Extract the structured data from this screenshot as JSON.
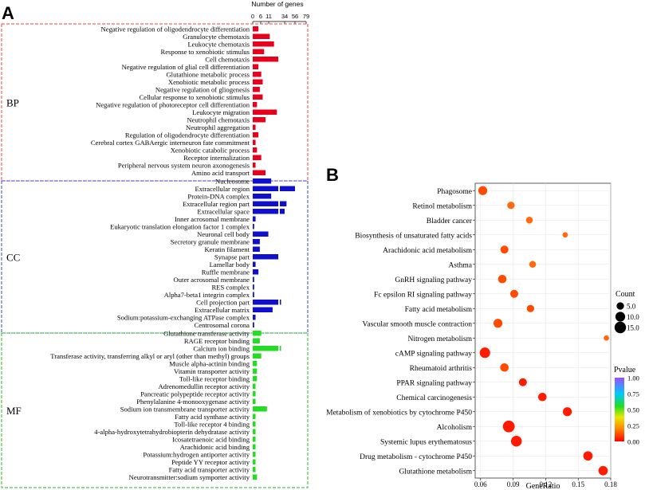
{
  "panel_a": {
    "letter": "A",
    "axis_title": "Number of genes",
    "ticks": [
      "0",
      "6",
      "11",
      "34",
      "56",
      "79"
    ],
    "groups": [
      {
        "name": "BP",
        "color": "#e8001c",
        "terms": [
          {
            "label": "Negative regulation of oligodendrocyte differentiation",
            "value": 4,
            "extra": null
          },
          {
            "label": "Granulocyte chemotaxis",
            "value": 12,
            "extra": null
          },
          {
            "label": "Leukocyte chemotaxis",
            "value": 15,
            "extra": null
          },
          {
            "label": "Response to xenobiotic stimulus",
            "value": 8,
            "extra": null
          },
          {
            "label": "Cell chemotaxis",
            "value": 18,
            "extra": null
          },
          {
            "label": "Negative regulation of glial cell differentiation",
            "value": 4,
            "extra": null
          },
          {
            "label": "Glutathione metabolic process",
            "value": 6,
            "extra": null
          },
          {
            "label": "Xenobiotic metabolic process",
            "value": 7,
            "extra": null
          },
          {
            "label": "Negative regulation of gliogenesis",
            "value": 5,
            "extra": null
          },
          {
            "label": "Cellular response to xenobiotic stimulus",
            "value": 7,
            "extra": null
          },
          {
            "label": "Negative regulation of photoreceptor cell differentiation",
            "value": 3,
            "extra": null
          },
          {
            "label": "Leukocyte migration",
            "value": 17,
            "extra": null
          },
          {
            "label": "Neutrophil chemotaxis",
            "value": 9,
            "extra": null
          },
          {
            "label": "Neutrophil aggregation",
            "value": 2,
            "extra": null
          },
          {
            "label": "Regulation of oligodendrocyte differentiation",
            "value": 4,
            "extra": null
          },
          {
            "label": "Cerebral cortex GABAergic interneuron fate commitment",
            "value": 2,
            "extra": null
          },
          {
            "label": "Xenobiotic catabolic process",
            "value": 3,
            "extra": null
          },
          {
            "label": "Receptor internalization",
            "value": 6,
            "extra": null
          },
          {
            "label": "Peripheral nervous system neuron axonogenesis",
            "value": 2,
            "extra": null
          },
          {
            "label": "Amino acid transport",
            "value": 9,
            "extra": null
          }
        ]
      },
      {
        "name": "CC",
        "color": "#1010cc",
        "terms": [
          {
            "label": "Nucleosome",
            "value": 13,
            "extra": null
          },
          {
            "label": "Extracellular region",
            "value": 18,
            "extra": 56
          },
          {
            "label": "Protein-DNA complex",
            "value": 13,
            "extra": null
          },
          {
            "label": "Extracellular region part",
            "value": 18,
            "extra": 38
          },
          {
            "label": "Extracellular space",
            "value": 18,
            "extra": 34
          },
          {
            "label": "Inner acrosomal membrane",
            "value": 2,
            "extra": null
          },
          {
            "label": "Eukaryotic translation elongation factor 1 complex",
            "value": 1,
            "extra": null
          },
          {
            "label": "Neuronal cell body",
            "value": 11,
            "extra": null
          },
          {
            "label": "Secretory granule membrane",
            "value": 5,
            "extra": null
          },
          {
            "label": "Keratin filament",
            "value": 5,
            "extra": null
          },
          {
            "label": "Synapse part",
            "value": 18,
            "extra": null
          },
          {
            "label": "Lamellar body",
            "value": 2,
            "extra": null
          },
          {
            "label": "Ruffle membrane",
            "value": 4,
            "extra": null
          },
          {
            "label": "Outer acrosomal membrane",
            "value": 1,
            "extra": null
          },
          {
            "label": "RES complex",
            "value": 1,
            "extra": null
          },
          {
            "label": "Alpha7-beta1 integrin complex",
            "value": 1,
            "extra": null
          },
          {
            "label": "Cell projection part",
            "value": 18,
            "extra": 20
          },
          {
            "label": "Extracellular matrix",
            "value": 14,
            "extra": null
          },
          {
            "label": "Sodium:potassium-exchanging ATPase complex",
            "value": 2,
            "extra": null
          },
          {
            "label": "Centrosomal corona",
            "value": 1,
            "extra": null
          }
        ]
      },
      {
        "name": "MF",
        "color": "#22dd22",
        "terms": [
          {
            "label": "Glutathione transferase activity",
            "value": 6,
            "extra": null
          },
          {
            "label": "RAGE receptor binding",
            "value": 5,
            "extra": null
          },
          {
            "label": "Calcium ion binding",
            "value": 18,
            "extra": 23
          },
          {
            "label": "Transferase activity, transferring alkyl or aryl (other than methyl) groups",
            "value": 6,
            "extra": null
          },
          {
            "label": "Muscle alpha-actinin binding",
            "value": 3,
            "extra": null
          },
          {
            "label": "Vitamin transporter activity",
            "value": 3,
            "extra": null
          },
          {
            "label": "Toll-like receptor binding",
            "value": 3,
            "extra": null
          },
          {
            "label": "Adrenomedullin receptor activity",
            "value": 2,
            "extra": null
          },
          {
            "label": "Pancreatic polypeptide receptor activity",
            "value": 2,
            "extra": null
          },
          {
            "label": "Phenylalanine 4-monooxygenase activity",
            "value": 2,
            "extra": null
          },
          {
            "label": "Sodium ion transmembrane transporter activity",
            "value": 10,
            "extra": null
          },
          {
            "label": "Fatty acid synthase activity",
            "value": 2,
            "extra": null
          },
          {
            "label": "Toll-like receptor 4 binding",
            "value": 2,
            "extra": null
          },
          {
            "label": "4-alpha-hydroxytetrahydrobiopterin dehydratase activity",
            "value": 2,
            "extra": null
          },
          {
            "label": "Icosatetraenoic acid binding",
            "value": 2,
            "extra": null
          },
          {
            "label": "Arachidonic acid binding",
            "value": 2,
            "extra": null
          },
          {
            "label": "Potassium:hydrogen antiporter activity",
            "value": 2,
            "extra": null
          },
          {
            "label": "Peptide YY receptor activity",
            "value": 2,
            "extra": null
          },
          {
            "label": "Fatty acid transporter activity",
            "value": 2,
            "extra": null
          },
          {
            "label": "Neurotransmitter:sodium symporter activity",
            "value": 3,
            "extra": null
          }
        ]
      }
    ]
  },
  "panel_b": {
    "letter": "B",
    "chart_data": {
      "type": "scatter",
      "xlabel": "GeneRatio",
      "xlim": [
        0.055,
        0.18
      ],
      "xticks": [
        "0.06",
        "0.09",
        "0.12",
        "0.15",
        "0.18"
      ],
      "size_legend_title": "Count",
      "size_legend": [
        "5.0",
        "10.0",
        "15.0"
      ],
      "color_legend_title": "Pvalue",
      "color_ticks": [
        "1.00",
        "0.75",
        "0.50",
        "0.25",
        "0.00"
      ],
      "points": [
        {
          "label": "Phagosome",
          "x": 0.062,
          "count": 8,
          "p": 0.005
        },
        {
          "label": "Retinol metabolism",
          "x": 0.088,
          "count": 5,
          "p": 0.01
        },
        {
          "label": "Bladder cancer",
          "x": 0.105,
          "count": 4,
          "p": 0.01
        },
        {
          "label": "Biosynthesis of unsaturated fatty acids",
          "x": 0.138,
          "count": 2,
          "p": 0.01
        },
        {
          "label": "Arachidonic acid metabolism",
          "x": 0.082,
          "count": 6,
          "p": 0.005
        },
        {
          "label": "Asthma",
          "x": 0.108,
          "count": 4,
          "p": 0.01
        },
        {
          "label": "GnRH signaling pathway",
          "x": 0.08,
          "count": 7,
          "p": 0.005
        },
        {
          "label": "Fc epsilon RI signaling pathway",
          "x": 0.091,
          "count": 6,
          "p": 0.005
        },
        {
          "label": "Fatty acid metabolism",
          "x": 0.106,
          "count": 5,
          "p": 0.005
        },
        {
          "label": "Vascular smooth muscle contraction",
          "x": 0.076,
          "count": 8,
          "p": 0.005
        },
        {
          "label": "Nitrogen metabolism",
          "x": 0.176,
          "count": 2,
          "p": 0.01
        },
        {
          "label": "cAMP signaling pathway",
          "x": 0.064,
          "count": 12,
          "p": 0.001
        },
        {
          "label": "Rheumatoid arthritis",
          "x": 0.082,
          "count": 7,
          "p": 0.005
        },
        {
          "label": "PPAR signaling pathway",
          "x": 0.099,
          "count": 6,
          "p": 0.003
        },
        {
          "label": "Chemical carcinogenesis",
          "x": 0.117,
          "count": 7,
          "p": 0.002
        },
        {
          "label": "Metabolism of xenobiotics by cytochrome P450",
          "x": 0.14,
          "count": 8,
          "p": 0.001
        },
        {
          "label": "Alcoholism",
          "x": 0.086,
          "count": 16,
          "p": 0.001
        },
        {
          "label": "Systemic lupus erythematosus",
          "x": 0.093,
          "count": 13,
          "p": 0.001
        },
        {
          "label": "Drug metabolism - cytochrome P450",
          "x": 0.159,
          "count": 9,
          "p": 0.001
        },
        {
          "label": "Glutathione metabolism",
          "x": 0.173,
          "count": 9,
          "p": 0.001
        }
      ]
    }
  }
}
